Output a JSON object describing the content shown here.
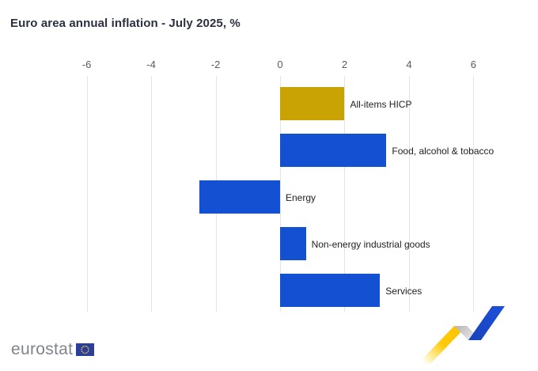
{
  "chart": {
    "title": "Euro area annual inflation - July 2025, %"
  },
  "footer": {
    "logo_text": "eurostat"
  },
  "chart_data": {
    "type": "bar",
    "orientation": "horizontal",
    "title": "Euro area annual inflation - July 2025, %",
    "unit": "%",
    "categories": [
      "All-items HICP",
      "Food, alcohol & tobacco",
      "Energy",
      "Non-energy industrial goods",
      "Services"
    ],
    "values": [
      2.0,
      3.3,
      -2.5,
      0.8,
      3.1
    ],
    "bar_colors": [
      "#C9A204",
      "#1450D2",
      "#1450D2",
      "#1450D2",
      "#1450D2"
    ],
    "ticks": [
      -6,
      -4,
      -2,
      0,
      2,
      4,
      6
    ],
    "xlim": [
      -6.53,
      6.53
    ],
    "xlabel": "",
    "ylabel": "",
    "grid": true,
    "gridline_color": "#E4E4E4",
    "legend": "none",
    "label_position": "right-of-bar"
  }
}
